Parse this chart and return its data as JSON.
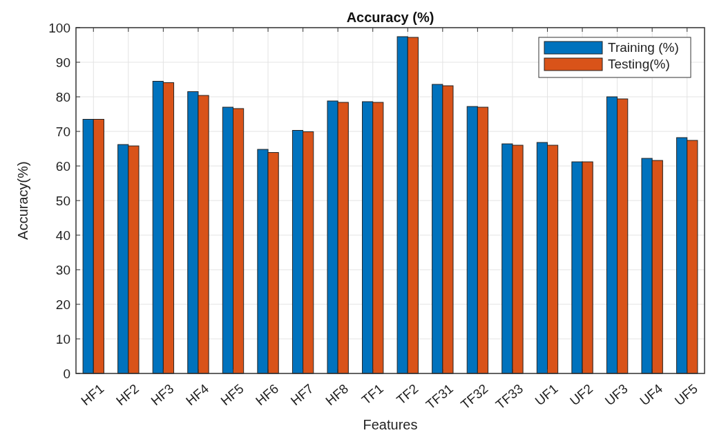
{
  "chart_data": {
    "type": "bar",
    "title": "Accuracy (%)",
    "xlabel": "Features",
    "ylabel": "Accuracy(%)",
    "categories": [
      "HF1",
      "HF2",
      "HF3",
      "HF4",
      "HF5",
      "HF6",
      "HF7",
      "HF8",
      "TF1",
      "TF2",
      "TF31",
      "TF32",
      "TF33",
      "UF1",
      "UF2",
      "UF3",
      "UF4",
      "UF5"
    ],
    "series": [
      {
        "name": "Training (%)",
        "color": "#0072bd",
        "values": [
          73.5,
          66.2,
          84.5,
          81.5,
          77.0,
          64.8,
          70.3,
          78.8,
          78.6,
          97.4,
          83.6,
          77.2,
          66.4,
          66.8,
          61.2,
          80.0,
          62.2,
          68.2
        ]
      },
      {
        "name": "Testing(%)",
        "color": "#d95319",
        "values": [
          73.5,
          65.8,
          84.1,
          80.4,
          76.6,
          63.9,
          69.9,
          78.4,
          78.4,
          97.2,
          83.2,
          77.0,
          66.0,
          66.0,
          61.2,
          79.4,
          61.6,
          67.4
        ]
      }
    ],
    "ylim": [
      0,
      100
    ],
    "yticks": [
      0,
      10,
      20,
      30,
      40,
      50,
      60,
      70,
      80,
      90,
      100
    ],
    "grid": true,
    "legend": "top right"
  }
}
